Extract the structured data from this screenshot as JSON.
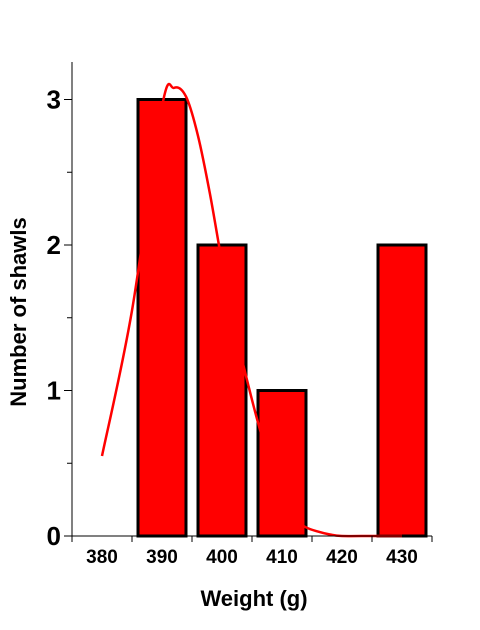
{
  "chart_data": {
    "type": "bar",
    "categories": [
      "380",
      "390",
      "400",
      "410",
      "420",
      "430"
    ],
    "values": [
      0,
      3,
      2,
      1,
      0,
      2
    ],
    "xlabel": "Weight (g)",
    "ylabel": "Number of shawls",
    "ylim": [
      0,
      3
    ],
    "yticks": [
      "0",
      "1",
      "2",
      "3"
    ],
    "grid": false,
    "legend": "none",
    "bar_color": "#ff0000",
    "bar_edge_color": "#000000",
    "curve_color": "#ff0000",
    "curve": {
      "x": [
        380,
        385,
        390,
        392,
        394,
        396,
        398,
        400,
        402,
        404,
        406,
        408,
        410,
        412,
        414,
        416,
        418,
        420,
        425,
        430
      ],
      "y": [
        0.55,
        1.55,
        2.95,
        3.08,
        3.02,
        2.75,
        2.35,
        1.88,
        1.45,
        1.1,
        0.78,
        0.5,
        0.28,
        0.12,
        0.06,
        0.03,
        0.01,
        0.0,
        0.0,
        0.0
      ]
    }
  }
}
